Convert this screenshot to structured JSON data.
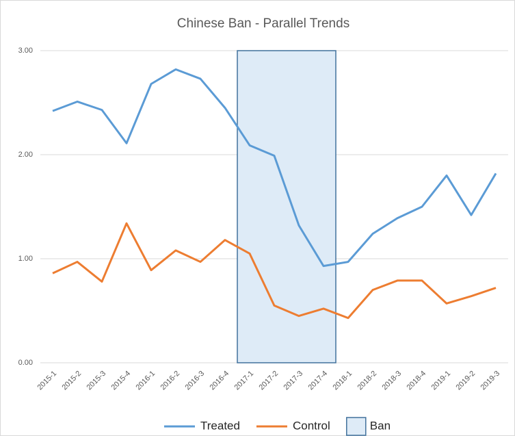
{
  "chart_data": {
    "type": "line",
    "title": "Chinese Ban - Parallel Trends",
    "categories": [
      "2015-1",
      "2015-2",
      "2015-3",
      "2015-4",
      "2016-1",
      "2016-2",
      "2016-3",
      "2016-4",
      "2017-1",
      "2017-2",
      "2017-3",
      "2017-4",
      "2018-1",
      "2018-2",
      "2018-3",
      "2018-4",
      "2019-1",
      "2019-2",
      "2019-3"
    ],
    "series": [
      {
        "name": "Treated",
        "type": "line",
        "color": "#5b9bd5",
        "values": [
          2.42,
          2.51,
          2.43,
          2.11,
          2.68,
          2.82,
          2.73,
          2.45,
          2.09,
          1.99,
          1.32,
          0.93,
          0.97,
          1.24,
          1.39,
          1.5,
          1.8,
          1.42,
          1.82
        ]
      },
      {
        "name": "Control",
        "type": "line",
        "color": "#ed7d31",
        "values": [
          0.86,
          0.97,
          0.78,
          1.34,
          0.89,
          1.08,
          0.97,
          1.18,
          1.05,
          0.55,
          0.45,
          0.52,
          0.43,
          0.7,
          0.79,
          0.79,
          0.57,
          0.64,
          0.72
        ]
      },
      {
        "name": "Ban",
        "type": "bar",
        "color": "#deebf7",
        "edge_color": "#41719c",
        "values": [
          null,
          null,
          null,
          null,
          null,
          null,
          null,
          null,
          3,
          3,
          3,
          3,
          null,
          null,
          null,
          null,
          null,
          null,
          null
        ]
      }
    ],
    "ylim": [
      0,
      3
    ],
    "yticks": [
      {
        "value": 0,
        "label": "0.00"
      },
      {
        "value": 1,
        "label": "1.00"
      },
      {
        "value": 2,
        "label": "2.00"
      },
      {
        "value": 3,
        "label": "3.00"
      }
    ],
    "grid": true,
    "legend": "bottom"
  }
}
